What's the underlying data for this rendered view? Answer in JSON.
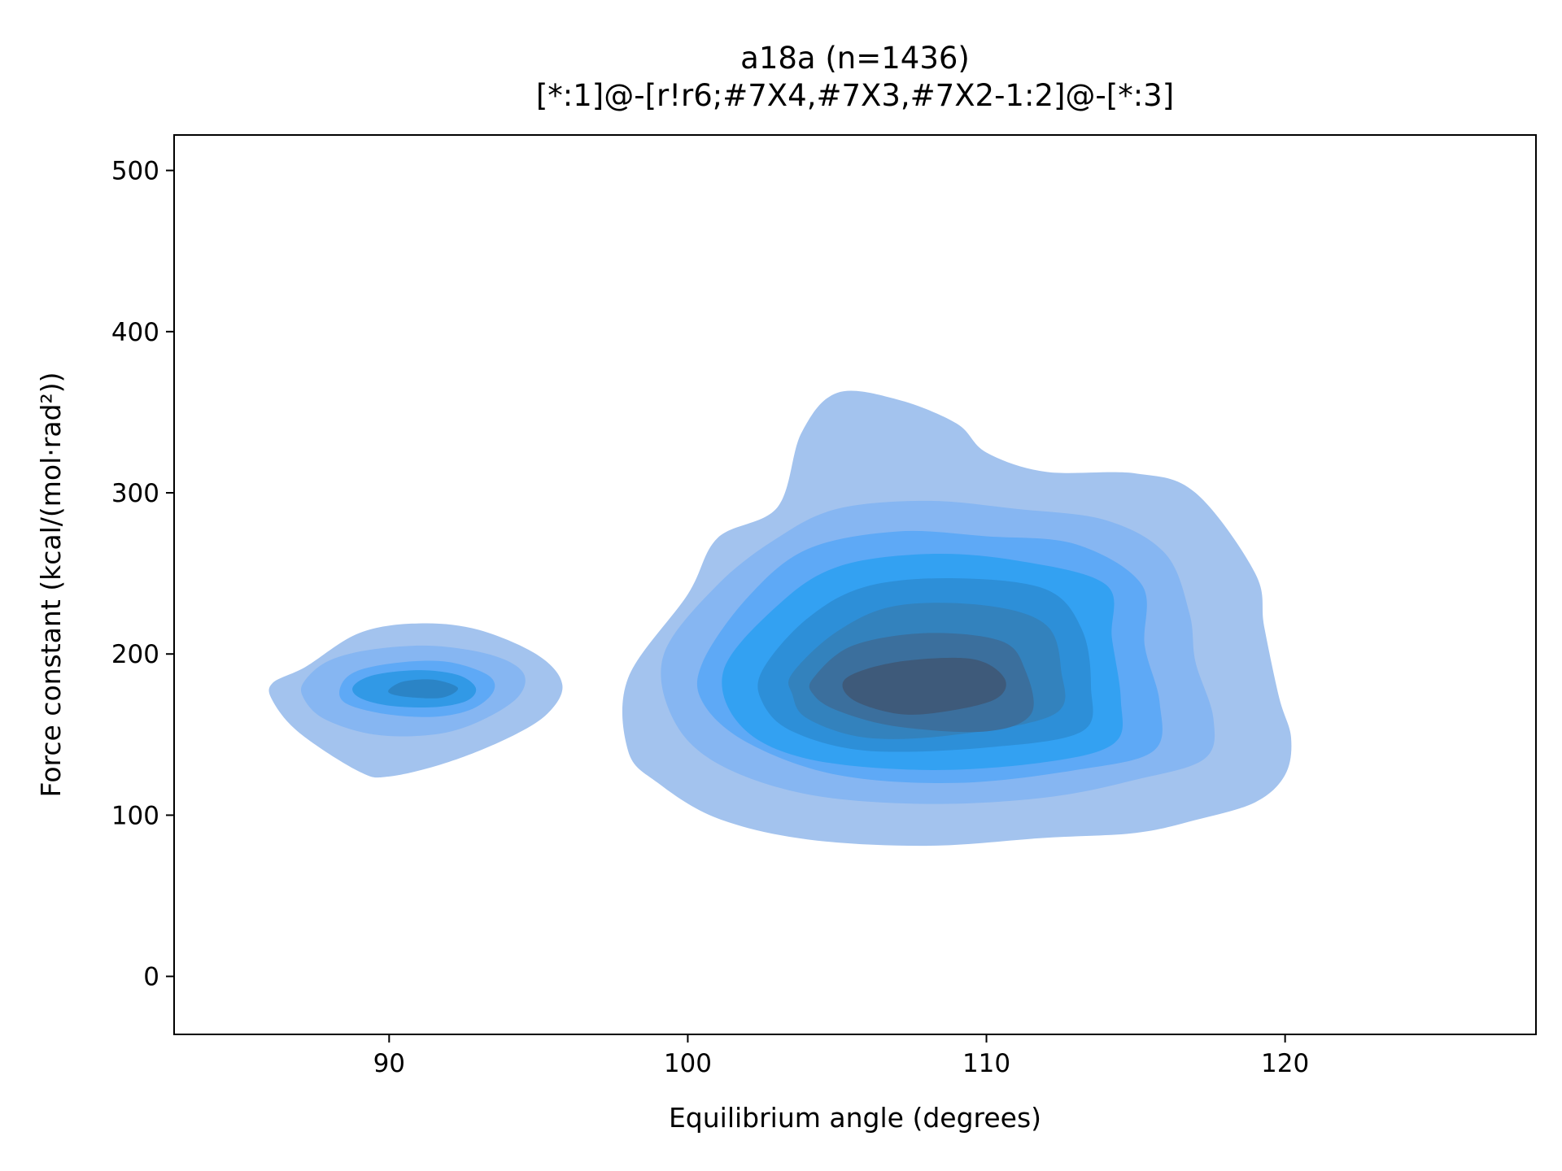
{
  "chart_data": {
    "type": "kde-contour",
    "title": "a18a (n=1436)",
    "subtitle": "[*:1]@-[r!r6;#7X4,#7X3,#7X2-1:2]@-[*:3]",
    "xlabel": "Equilibrium angle (degrees)",
    "ylabel": "Force constant (kcal/(mol·rad²))",
    "xlim": [
      82.8,
      128.4
    ],
    "ylim": [
      -36,
      522
    ],
    "xticks": [
      90,
      100,
      110,
      120
    ],
    "yticks": [
      0,
      100,
      200,
      300,
      400,
      500
    ],
    "grid": false,
    "legend": "none",
    "sample_count": 1436,
    "clusters": [
      {
        "center": [
          90.9,
          178
        ],
        "levels": [
          {
            "color": "#a3c3ee",
            "outline": [
              [
                87.2,
                192
              ],
              [
                89.0,
                213
              ],
              [
                91.0,
                219
              ],
              [
                93.0,
                215
              ],
              [
                95.0,
                199
              ],
              [
                95.8,
                181
              ],
              [
                95.3,
                163
              ],
              [
                94.0,
                148
              ],
              [
                92.0,
                133
              ],
              [
                90.0,
                124
              ],
              [
                89.0,
                127
              ],
              [
                87.0,
                151
              ],
              [
                86.1,
                171
              ],
              [
                86.1,
                182
              ]
            ]
          },
          {
            "color": "#86b6f2",
            "outline": [
              [
                87.2,
                184
              ],
              [
                88.0,
                196
              ],
              [
                89.5,
                203
              ],
              [
                91.5,
                205
              ],
              [
                93.5,
                199
              ],
              [
                94.5,
                188
              ],
              [
                94.3,
                173
              ],
              [
                93.0,
                158
              ],
              [
                91.5,
                150
              ],
              [
                89.5,
                150
              ],
              [
                87.8,
                160
              ],
              [
                87.1,
                174
              ]
            ]
          },
          {
            "color": "#5ea9f6",
            "outline": [
              [
                88.4,
                181
              ],
              [
                89.0,
                190
              ],
              [
                90.5,
                195
              ],
              [
                92.0,
                195
              ],
              [
                93.3,
                187
              ],
              [
                93.5,
                177
              ],
              [
                92.8,
                166
              ],
              [
                91.5,
                161
              ],
              [
                89.8,
                163
              ],
              [
                88.5,
                170
              ]
            ]
          },
          {
            "color": "#3199e6",
            "outline": [
              [
                88.8,
                180
              ],
              [
                89.5,
                187
              ],
              [
                91.0,
                190
              ],
              [
                92.3,
                187
              ],
              [
                92.9,
                179
              ],
              [
                92.6,
                171
              ],
              [
                91.5,
                167
              ],
              [
                90.0,
                168
              ],
              [
                89.0,
                173
              ]
            ]
          },
          {
            "color": "#2b84c6",
            "outline": [
              [
                90.0,
                178
              ],
              [
                90.5,
                183
              ],
              [
                91.5,
                184
              ],
              [
                92.3,
                179
              ],
              [
                91.8,
                173
              ],
              [
                90.8,
                173
              ],
              [
                90.1,
                175
              ]
            ]
          }
        ]
      },
      {
        "center": [
          108.0,
          185
        ],
        "levels": [
          {
            "color": "#a3c3ee",
            "outline": [
              [
                98.0,
                185
              ],
              [
                100.0,
                237
              ],
              [
                101.0,
                272
              ],
              [
                103.0,
                291
              ],
              [
                103.8,
                337
              ],
              [
                105.0,
                362
              ],
              [
                107.0,
                358
              ],
              [
                109.0,
                343
              ],
              [
                110.0,
                325
              ],
              [
                112.0,
                313
              ],
              [
                115.0,
                312
              ],
              [
                117.0,
                300
              ],
              [
                119.0,
                250
              ],
              [
                119.3,
                217
              ],
              [
                119.8,
                173
              ],
              [
                120.2,
                148
              ],
              [
                120.0,
                125
              ],
              [
                119.0,
                108
              ],
              [
                117.0,
                97
              ],
              [
                115.0,
                89
              ],
              [
                112.0,
                86
              ],
              [
                108.0,
                81
              ],
              [
                104.0,
                85
              ],
              [
                101.0,
                98
              ],
              [
                99.0,
                120
              ],
              [
                98.0,
                140
              ]
            ]
          },
          {
            "color": "#86b6f2",
            "outline": [
              [
                99.2,
                200
              ],
              [
                101.0,
                243
              ],
              [
                103.0,
                272
              ],
              [
                105.0,
                290
              ],
              [
                108.0,
                295
              ],
              [
                111.0,
                290
              ],
              [
                114.0,
                283
              ],
              [
                116.0,
                262
              ],
              [
                116.8,
                225
              ],
              [
                117.0,
                195
              ],
              [
                117.6,
                160
              ],
              [
                117.3,
                135
              ],
              [
                115.0,
                122
              ],
              [
                112.0,
                111
              ],
              [
                108.0,
                107
              ],
              [
                104.0,
                113
              ],
              [
                101.0,
                132
              ],
              [
                99.5,
                160
              ]
            ]
          },
          {
            "color": "#5ea9f6",
            "outline": [
              [
                100.5,
                195
              ],
              [
                102.0,
                235
              ],
              [
                104.0,
                265
              ],
              [
                107.0,
                276
              ],
              [
                110.0,
                273
              ],
              [
                113.0,
                268
              ],
              [
                115.2,
                243
              ],
              [
                115.3,
                205
              ],
              [
                115.8,
                170
              ],
              [
                115.6,
                140
              ],
              [
                113.0,
                128
              ],
              [
                109.0,
                120
              ],
              [
                105.0,
                125
              ],
              [
                102.0,
                145
              ],
              [
                100.5,
                170
              ]
            ]
          },
          {
            "color": "#33a1f2",
            "outline": [
              [
                101.2,
                190
              ],
              [
                103.0,
                230
              ],
              [
                105.0,
                254
              ],
              [
                108.0,
                262
              ],
              [
                111.0,
                258
              ],
              [
                114.0,
                243
              ],
              [
                114.2,
                210
              ],
              [
                114.5,
                172
              ],
              [
                114.3,
                145
              ],
              [
                112.0,
                133
              ],
              [
                108.0,
                128
              ],
              [
                104.0,
                135
              ],
              [
                101.8,
                155
              ]
            ]
          },
          {
            "color": "#2d8fd8",
            "outline": [
              [
                102.5,
                190
              ],
              [
                104.0,
                222
              ],
              [
                106.0,
                242
              ],
              [
                109.0,
                247
              ],
              [
                112.0,
                240
              ],
              [
                113.2,
                215
              ],
              [
                113.5,
                180
              ],
              [
                113.2,
                152
              ],
              [
                110.0,
                142
              ],
              [
                106.0,
                140
              ],
              [
                103.5,
                152
              ],
              [
                102.5,
                170
              ]
            ]
          },
          {
            "color": "#3382bd",
            "outline": [
              [
                103.5,
                188
              ],
              [
                105.0,
                214
              ],
              [
                107.0,
                230
              ],
              [
                110.0,
                230
              ],
              [
                112.0,
                218
              ],
              [
                112.5,
                190
              ],
              [
                112.3,
                163
              ],
              [
                109.0,
                150
              ],
              [
                106.0,
                148
              ],
              [
                104.0,
                160
              ],
              [
                103.5,
                175
              ]
            ]
          },
          {
            "color": "#3b6f9d",
            "outline": [
              [
                104.2,
                185
              ],
              [
                105.5,
                205
              ],
              [
                108.0,
                213
              ],
              [
                110.5,
                208
              ],
              [
                111.3,
                190
              ],
              [
                111.5,
                163
              ],
              [
                110.0,
                152
              ],
              [
                107.0,
                155
              ],
              [
                105.0,
                165
              ],
              [
                104.2,
                175
              ]
            ]
          },
          {
            "color": "#3e5a7a",
            "outline": [
              [
                105.3,
                185
              ],
              [
                107.0,
                195
              ],
              [
                109.5,
                197
              ],
              [
                110.6,
                185
              ],
              [
                110.3,
                172
              ],
              [
                108.5,
                164
              ],
              [
                107.0,
                163
              ],
              [
                105.5,
                172
              ]
            ]
          }
        ]
      }
    ]
  }
}
